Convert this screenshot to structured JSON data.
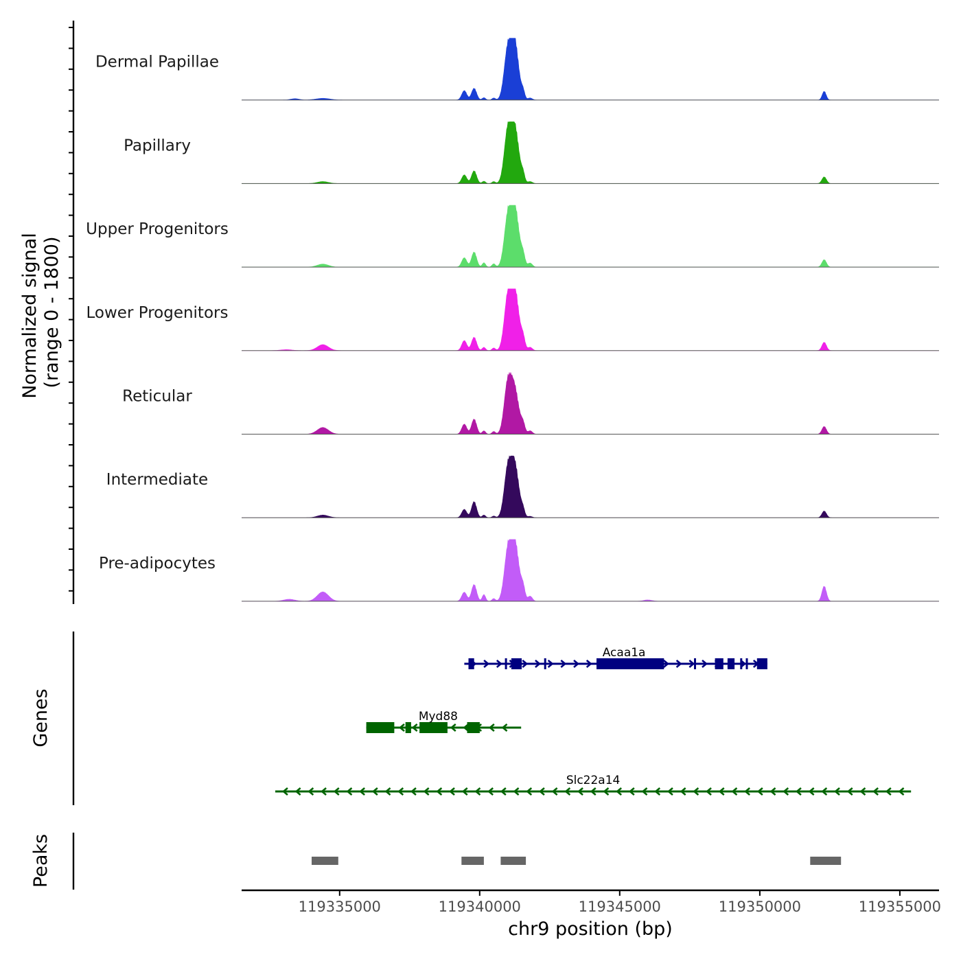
{
  "chart_data": {
    "type": "area",
    "title": "",
    "ylabel_line1": "Normalized signal",
    "ylabel_line2": "(range 0 - 1800)",
    "y_range": [
      0,
      1800
    ],
    "xlabel": "chr9 position (bp)",
    "xlim": [
      119331500,
      119356400
    ],
    "x_ticks": [
      119335000,
      119340000,
      119345000,
      119350000,
      119355000
    ],
    "x_tick_labels": [
      "119335000",
      "119340000",
      "119345000",
      "119350000",
      "119355000"
    ],
    "coverage_tracks": [
      {
        "name": "Dermal Papillae",
        "color": "#1A3FD6",
        "peaks": [
          [
            119333400,
            40,
            150
          ],
          [
            119334400,
            50,
            250
          ],
          [
            119339450,
            280,
            90
          ],
          [
            119339800,
            350,
            90
          ],
          [
            119340150,
            70,
            60
          ],
          [
            119340500,
            60,
            60
          ],
          [
            119341000,
            1400,
            130
          ],
          [
            119341250,
            1700,
            140
          ],
          [
            119341550,
            220,
            60
          ],
          [
            119341800,
            60,
            80
          ],
          [
            119352300,
            260,
            70
          ]
        ]
      },
      {
        "name": "Papillary",
        "color": "#22A80E",
        "peaks": [
          [
            119334400,
            60,
            200
          ],
          [
            119339450,
            260,
            90
          ],
          [
            119339800,
            380,
            90
          ],
          [
            119340150,
            70,
            60
          ],
          [
            119340500,
            60,
            60
          ],
          [
            119341000,
            1400,
            130
          ],
          [
            119341250,
            1640,
            150
          ],
          [
            119341550,
            220,
            60
          ],
          [
            119341800,
            60,
            80
          ],
          [
            119352300,
            200,
            80
          ]
        ]
      },
      {
        "name": "Upper Progenitors",
        "color": "#5CDD6B",
        "peaks": [
          [
            119334400,
            90,
            200
          ],
          [
            119339450,
            280,
            90
          ],
          [
            119339800,
            450,
            90
          ],
          [
            119340150,
            130,
            60
          ],
          [
            119340500,
            100,
            60
          ],
          [
            119341000,
            1300,
            130
          ],
          [
            119341250,
            1780,
            150
          ],
          [
            119341550,
            300,
            70
          ],
          [
            119341800,
            120,
            80
          ],
          [
            119352300,
            220,
            80
          ]
        ]
      },
      {
        "name": "Lower Progenitors",
        "color": "#F020E8",
        "peaks": [
          [
            119333100,
            30,
            200
          ],
          [
            119334400,
            180,
            200
          ],
          [
            119339450,
            300,
            90
          ],
          [
            119339800,
            400,
            90
          ],
          [
            119340150,
            100,
            60
          ],
          [
            119340500,
            80,
            60
          ],
          [
            119341000,
            1400,
            130
          ],
          [
            119341250,
            1800,
            150
          ],
          [
            119341550,
            320,
            70
          ],
          [
            119341800,
            100,
            80
          ],
          [
            119352300,
            250,
            80
          ]
        ]
      },
      {
        "name": "Reticular",
        "color": "#B118A4",
        "peaks": [
          [
            119334400,
            200,
            200
          ],
          [
            119339450,
            300,
            90
          ],
          [
            119339800,
            450,
            90
          ],
          [
            119340150,
            100,
            60
          ],
          [
            119340500,
            80,
            60
          ],
          [
            119341000,
            1400,
            130
          ],
          [
            119341250,
            1300,
            150
          ],
          [
            119341550,
            260,
            70
          ],
          [
            119341800,
            100,
            80
          ],
          [
            119352300,
            230,
            80
          ]
        ]
      },
      {
        "name": "Intermediate",
        "color": "#34095C",
        "peaks": [
          [
            119334400,
            80,
            200
          ],
          [
            119339450,
            250,
            90
          ],
          [
            119339800,
            480,
            90
          ],
          [
            119340150,
            80,
            60
          ],
          [
            119340500,
            50,
            60
          ],
          [
            119341000,
            1300,
            130
          ],
          [
            119341250,
            1550,
            150
          ],
          [
            119341550,
            180,
            60
          ],
          [
            119341800,
            40,
            80
          ],
          [
            119352300,
            200,
            80
          ]
        ]
      },
      {
        "name": "Pre-adipocytes",
        "color": "#C25CF8",
        "peaks": [
          [
            119333200,
            60,
            200
          ],
          [
            119334400,
            280,
            200
          ],
          [
            119339450,
            270,
            90
          ],
          [
            119339800,
            500,
            90
          ],
          [
            119340150,
            200,
            60
          ],
          [
            119340500,
            80,
            60
          ],
          [
            119341000,
            1300,
            130
          ],
          [
            119341250,
            1770,
            150
          ],
          [
            119341550,
            350,
            70
          ],
          [
            119341800,
            150,
            80
          ],
          [
            119346000,
            40,
            150
          ],
          [
            119352300,
            450,
            80
          ]
        ]
      }
    ],
    "gene_panel_label": "Genes",
    "genes": [
      {
        "name": "Acaa1a",
        "strand": "+",
        "color": "#000080",
        "start": 119339450,
        "end": 119350270,
        "exons": [
          [
            119339600,
            119339800
          ],
          [
            119340900,
            119340950
          ],
          [
            119341130,
            119341500
          ],
          [
            119342300,
            119342350
          ],
          [
            119344170,
            119346580
          ],
          [
            119347650,
            119347700
          ],
          [
            119348400,
            119348700
          ],
          [
            119348850,
            119349100
          ],
          [
            119349300,
            119349350
          ],
          [
            119349500,
            119349550
          ],
          [
            119349900,
            119350270
          ]
        ]
      },
      {
        "name": "Myd88",
        "strand": "-",
        "color": "#006400",
        "start": 119335950,
        "end": 119341480,
        "exons": [
          [
            119335950,
            119336950
          ],
          [
            119337350,
            119337550
          ],
          [
            119337850,
            119338850
          ],
          [
            119339550,
            119340000
          ]
        ]
      },
      {
        "name": "Slc22a14",
        "strand": "-",
        "color": "#006400",
        "start": 119332700,
        "end": 119355400,
        "exons": []
      }
    ],
    "peak_panel_label": "Peaks",
    "peak_regions": [
      [
        119334000,
        119334950
      ],
      [
        119339350,
        119340150
      ],
      [
        119340750,
        119341650
      ],
      [
        119351800,
        119352900
      ]
    ],
    "peak_color": "#666666"
  }
}
